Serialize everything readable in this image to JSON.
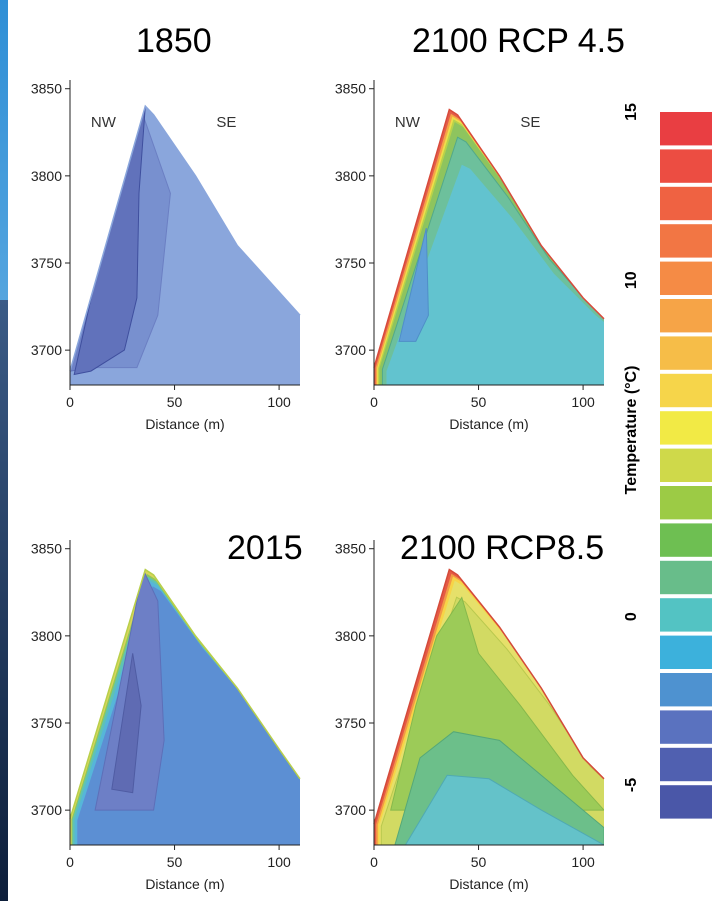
{
  "chart_data": {
    "type": "contour",
    "panels": [
      {
        "id": "p1850",
        "title": "1850",
        "xlabel": "Distance (m)",
        "xlim": [
          0,
          110
        ],
        "ylim": [
          3680,
          3855
        ],
        "xticks": [
          0,
          50,
          100
        ],
        "yticks": [
          3700,
          3750,
          3800,
          3850
        ],
        "side_labels": [
          "NW",
          "SE"
        ],
        "profile": [
          [
            0,
            3688
          ],
          [
            36,
            3840
          ],
          [
            40,
            3835
          ],
          [
            60,
            3800
          ],
          [
            80,
            3760
          ],
          [
            95,
            3740
          ],
          [
            110,
            3720
          ]
        ],
        "bands": [
          {
            "color": "#6f82c8",
            "outline": [
              [
                0,
                3688
              ],
              [
                35,
                3840
              ],
              [
                25,
                3770
              ],
              [
                18,
                3700
              ],
              [
                12,
                3690
              ]
            ]
          },
          {
            "color": "#6477be",
            "outline": [
              [
                8,
                3690
              ],
              [
                22,
                3760
              ],
              [
                34,
                3838
              ],
              [
                48,
                3790
              ],
              [
                42,
                3720
              ],
              [
                32,
                3690
              ]
            ]
          },
          {
            "color": "#5a6cb5",
            "outline": [
              [
                2,
                3686
              ],
              [
                30,
                3838
              ],
              [
                36,
                3840
              ],
              [
                33,
                3790
              ],
              [
                32,
                3730
              ],
              [
                26,
                3700
              ],
              [
                10,
                3688
              ]
            ]
          }
        ]
      },
      {
        "id": "p2100_45",
        "title": "2100 RCP 4.5",
        "xlabel": "Distance (m)",
        "xlim": [
          0,
          110
        ],
        "ylim": [
          3680,
          3855
        ],
        "xticks": [
          0,
          50,
          100
        ],
        "yticks": [
          3700,
          3750,
          3800,
          3850
        ],
        "side_labels": [
          "NW",
          "SE"
        ],
        "profile": [
          [
            0,
            3690
          ],
          [
            36,
            3838
          ],
          [
            40,
            3835
          ],
          [
            60,
            3800
          ],
          [
            80,
            3760
          ],
          [
            100,
            3730
          ],
          [
            110,
            3718
          ]
        ]
      },
      {
        "id": "p2015",
        "title": "2015",
        "xlabel": "Distance (m)",
        "xlim": [
          0,
          110
        ],
        "ylim": [
          3680,
          3855
        ],
        "xticks": [
          0,
          50,
          100
        ],
        "yticks": [
          3700,
          3750,
          3800,
          3850
        ],
        "side_labels": [],
        "profile": [
          [
            0,
            3695
          ],
          [
            36,
            3838
          ],
          [
            40,
            3835
          ],
          [
            60,
            3800
          ],
          [
            80,
            3770
          ],
          [
            100,
            3735
          ],
          [
            110,
            3718
          ]
        ]
      },
      {
        "id": "p2100_85",
        "title": "2100 RCP8.5",
        "xlabel": "Distance (m)",
        "xlim": [
          0,
          110
        ],
        "ylim": [
          3680,
          3855
        ],
        "xticks": [
          0,
          50,
          100
        ],
        "yticks": [
          3700,
          3750,
          3800,
          3850
        ],
        "side_labels": [],
        "profile": [
          [
            0,
            3692
          ],
          [
            36,
            3838
          ],
          [
            40,
            3835
          ],
          [
            60,
            3805
          ],
          [
            80,
            3770
          ],
          [
            100,
            3730
          ],
          [
            110,
            3718
          ]
        ]
      }
    ],
    "colorbar": {
      "label": "Temperature (°C)",
      "ticks": [
        15,
        10,
        0,
        -5
      ],
      "range": [
        -6,
        15
      ],
      "colors": [
        "#4a57a8",
        "#5060b0",
        "#5a72bf",
        "#4e92d0",
        "#3cb1dc",
        "#53c3c3",
        "#68bd8a",
        "#6ebf52",
        "#9ccb45",
        "#cfd94a",
        "#f2ea45",
        "#f6d54a",
        "#f6bd48",
        "#f6a447",
        "#f58b45",
        "#f27644",
        "#ef6242",
        "#ec4d42",
        "#e93e42"
      ]
    }
  }
}
